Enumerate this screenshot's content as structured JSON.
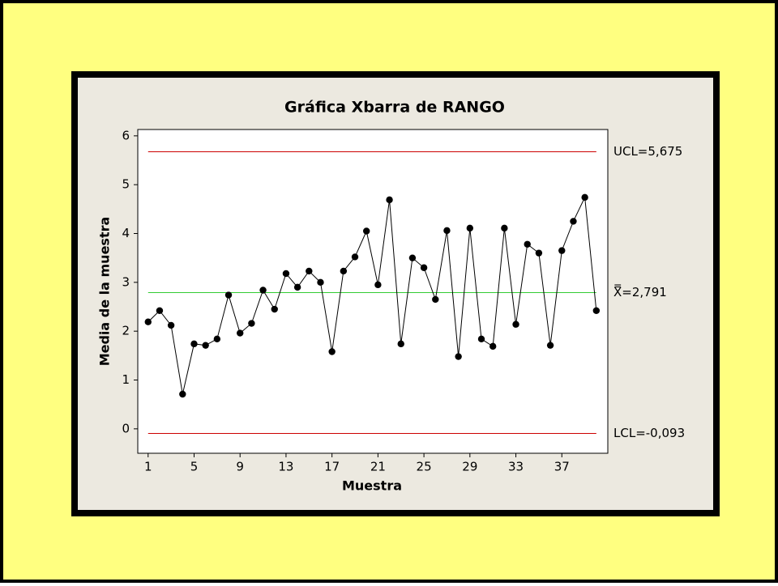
{
  "chart_data": {
    "type": "line",
    "title": "Gráfica Xbarra de RANGO",
    "x_label": "Muestra",
    "y_label": "Media de la muestra",
    "x": [
      1,
      2,
      3,
      4,
      5,
      6,
      7,
      8,
      9,
      10,
      11,
      12,
      13,
      14,
      15,
      16,
      17,
      18,
      19,
      20,
      21,
      22,
      23,
      24,
      25,
      26,
      27,
      28,
      29,
      30,
      31,
      32,
      33,
      34,
      35,
      36,
      37,
      38,
      39,
      40
    ],
    "values": [
      2.19,
      2.42,
      2.12,
      0.71,
      1.74,
      1.71,
      1.84,
      2.74,
      1.96,
      2.16,
      2.84,
      2.45,
      3.18,
      2.9,
      3.23,
      3.0,
      1.58,
      3.23,
      3.52,
      4.05,
      2.95,
      4.69,
      1.74,
      3.5,
      3.3,
      2.65,
      4.06,
      1.48,
      4.11,
      1.84,
      1.69,
      4.11,
      2.14,
      3.78,
      3.6,
      1.71,
      3.65,
      4.25,
      4.74,
      2.42
    ],
    "color": "#000000",
    "xlim": [
      0.1,
      41
    ],
    "xticks": [
      1,
      5,
      9,
      13,
      17,
      21,
      25,
      29,
      33,
      37
    ],
    "ylim": [
      -0.5,
      6.13
    ],
    "yticks": [
      0,
      1,
      2,
      3,
      4,
      5,
      6
    ],
    "reference_lines": [
      {
        "value": 5.675,
        "label": "UCL=5,675",
        "color": "#cc0000"
      },
      {
        "value": 2.791,
        "label": "X̿=2,791",
        "color": "#33cc33"
      },
      {
        "value": -0.093,
        "label": "LCL=-0,093",
        "color": "#cc0000"
      }
    ]
  }
}
